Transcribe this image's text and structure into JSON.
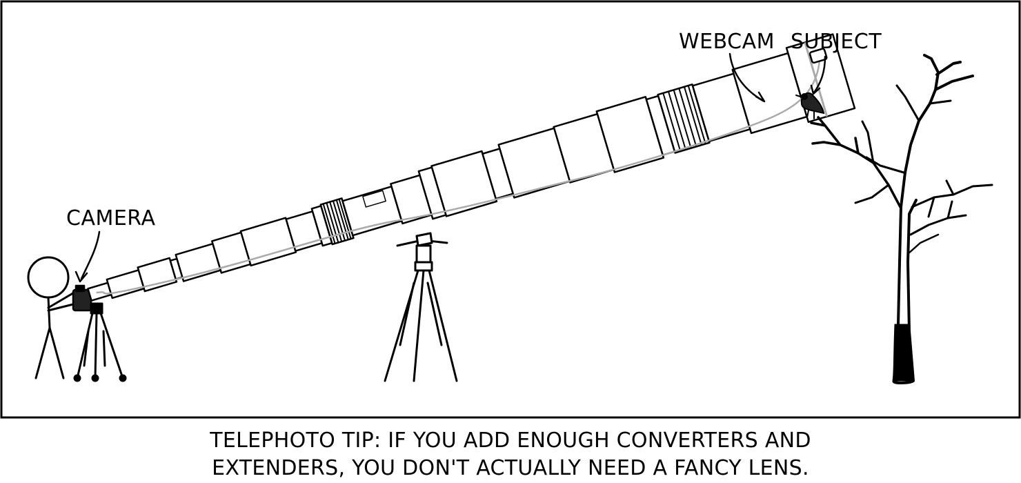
{
  "labels": {
    "camera": "CAMERA",
    "webcam": "WEBCAM",
    "subject": "SUBJECT"
  },
  "caption": {
    "line1": "TELEPHOTO TIP: IF YOU ADD ENOUGH CONVERTERS AND",
    "line2": "EXTENDERS, YOU DON'T ACTUALLY NEED A FANCY LENS."
  },
  "colors": {
    "ink": "#000000",
    "cable": "#aaaaaa",
    "paper": "#ffffff"
  }
}
